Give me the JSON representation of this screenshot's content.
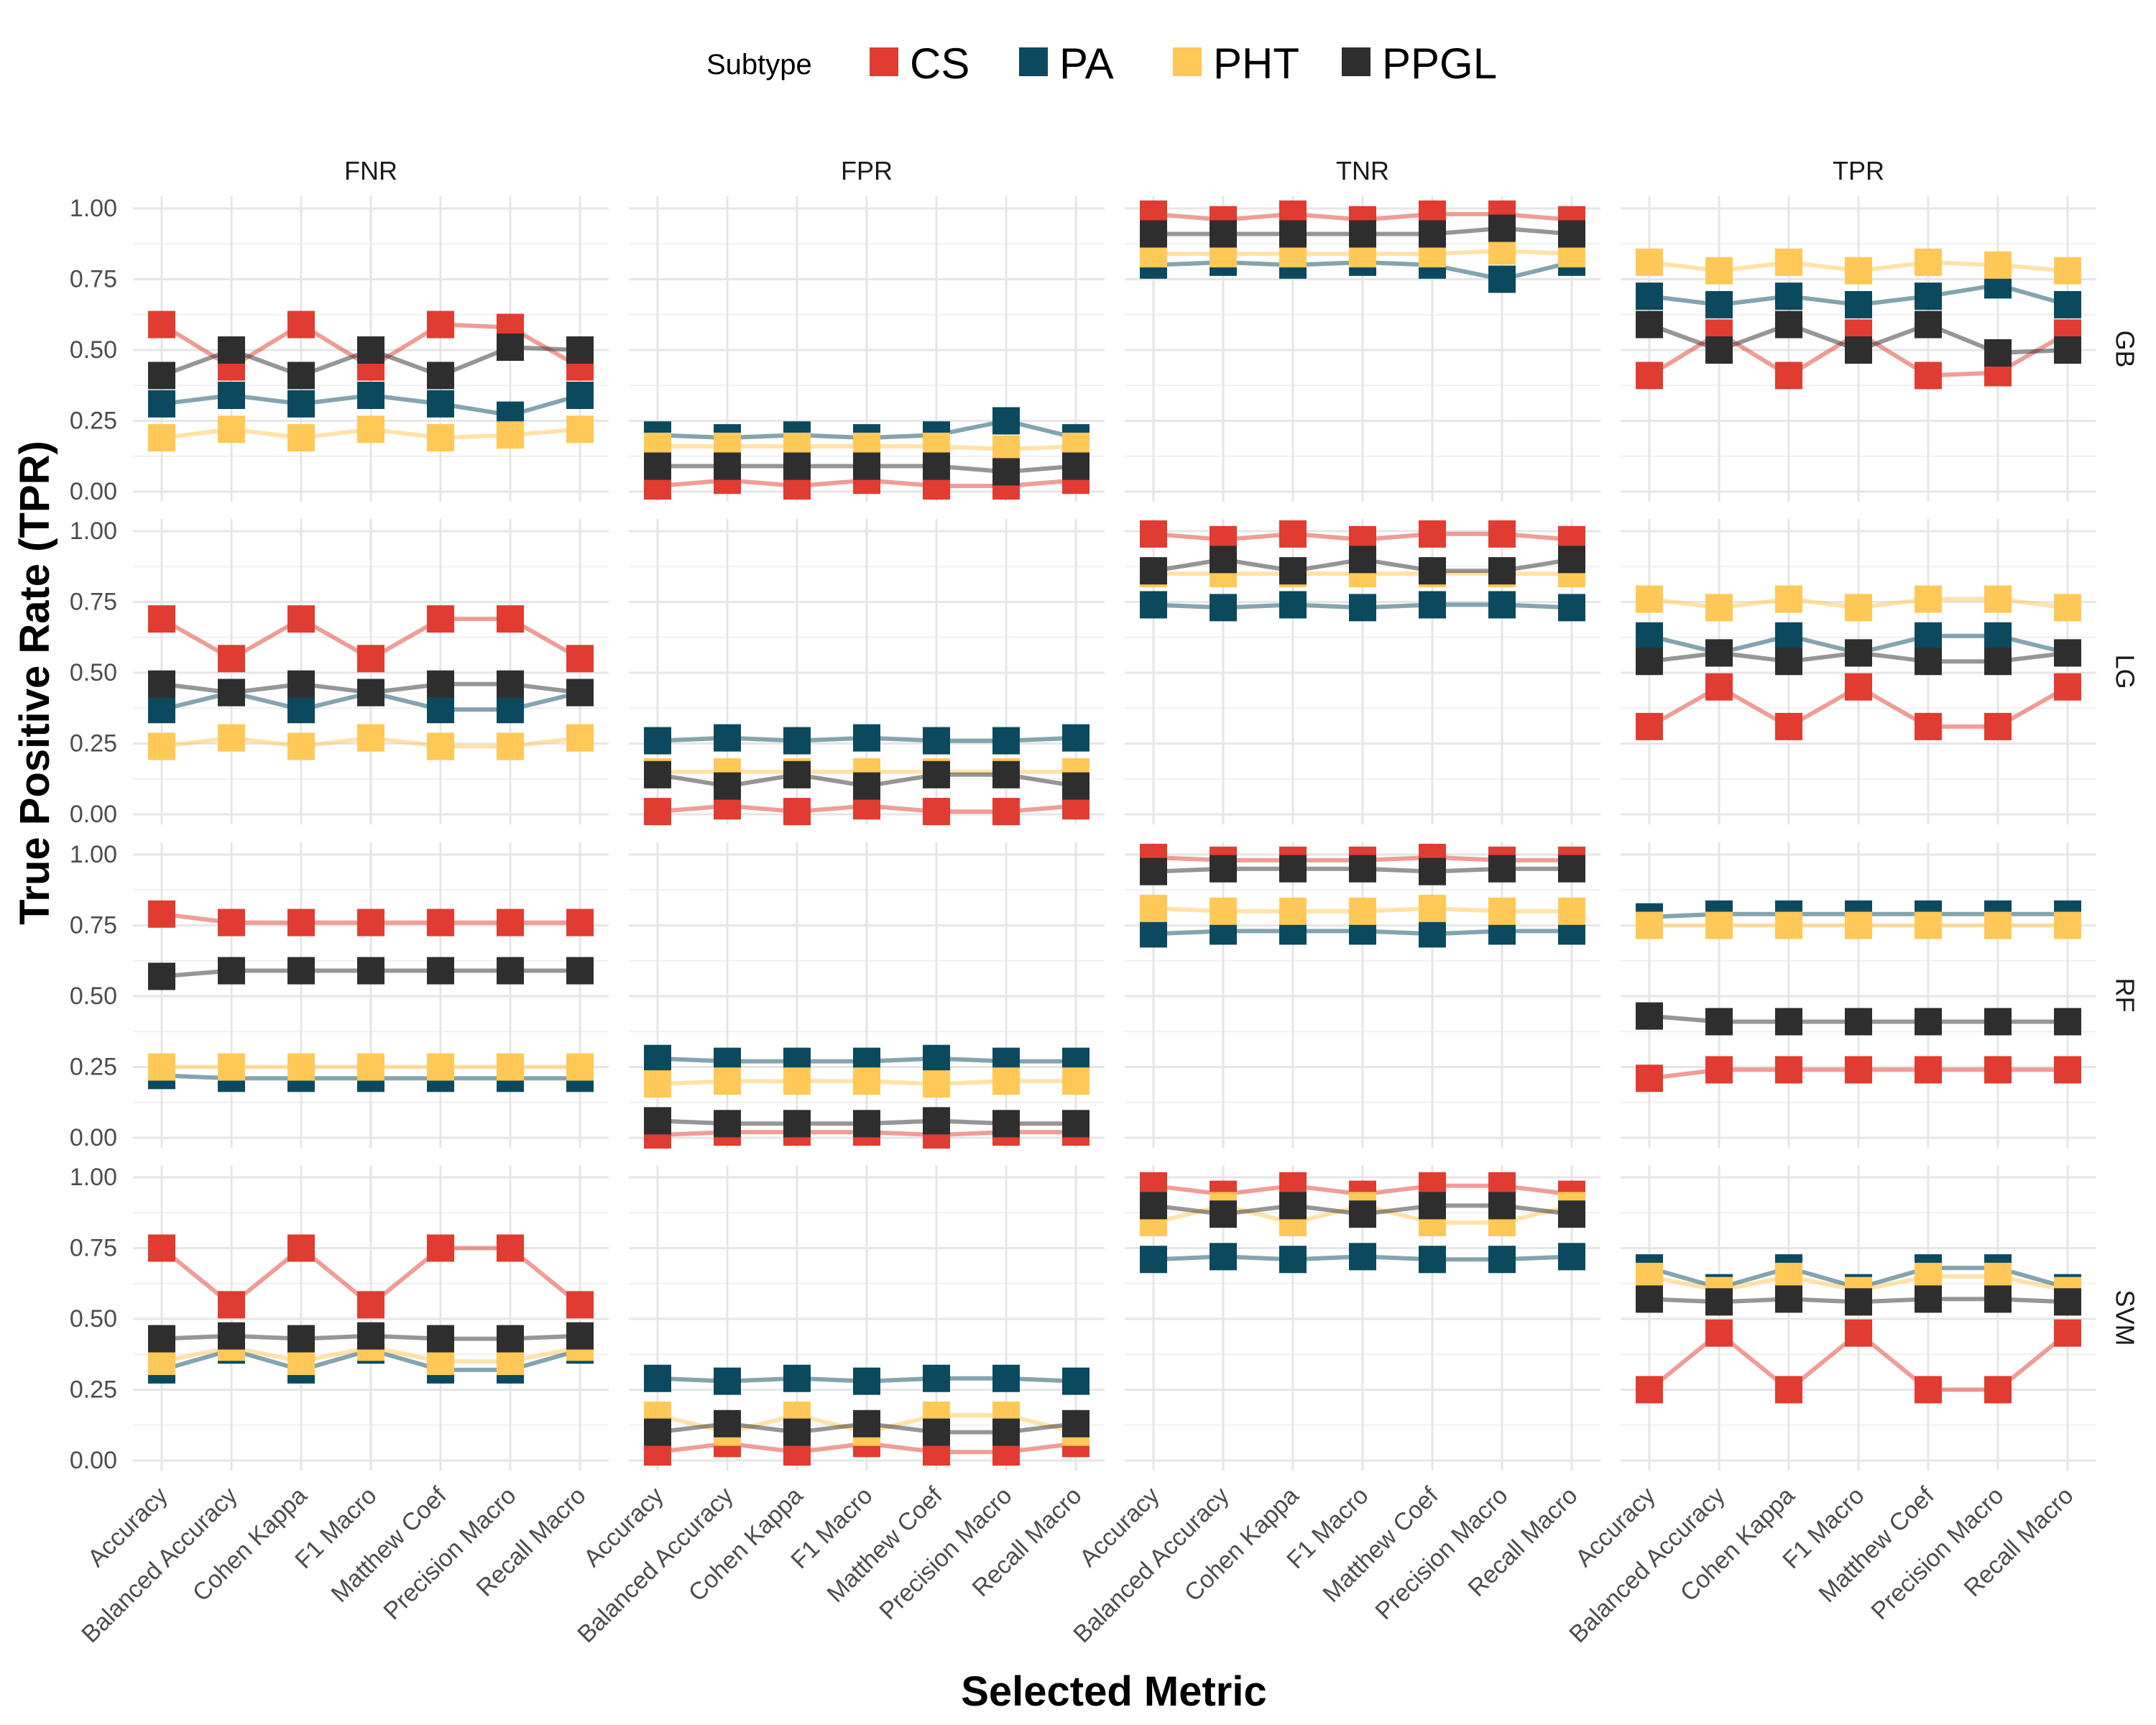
{
  "chart_data": {
    "type": "line",
    "title": "",
    "xlabel": "Selected Metric",
    "ylabel": "True Positive Rate (TPR)",
    "ylim": [
      0,
      1.0
    ],
    "y_ticks": [
      "0.00",
      "0.25",
      "0.50",
      "0.75",
      "1.00"
    ],
    "y_tick_values": [
      0,
      0.25,
      0.5,
      0.75,
      1.0
    ],
    "categories": [
      "Accuracy",
      "Balanced Accuracy",
      "Cohen Kappa",
      "F1 Macro",
      "Matthew Coef",
      "Precision Macro",
      "Recall Macro"
    ],
    "facet_columns": [
      "FNR",
      "FPR",
      "TNR",
      "TPR"
    ],
    "facet_rows": [
      "GB",
      "LG",
      "RF",
      "SVM"
    ],
    "legend": {
      "title": "Subtype",
      "position": "top"
    },
    "grid": true,
    "series_colors": {
      "CS": "#E03C31",
      "PA": "#0B4A5E",
      "PHT": "#FFC857",
      "PPGL": "#2E2E2E"
    },
    "series": [
      {
        "row": "GB",
        "col": "FNR",
        "name": "CS",
        "values": [
          0.59,
          0.44,
          0.59,
          0.44,
          0.59,
          0.58,
          0.44
        ]
      },
      {
        "row": "GB",
        "col": "FNR",
        "name": "PA",
        "values": [
          0.31,
          0.34,
          0.31,
          0.34,
          0.31,
          0.27,
          0.34
        ]
      },
      {
        "row": "GB",
        "col": "FNR",
        "name": "PHT",
        "values": [
          0.19,
          0.22,
          0.19,
          0.22,
          0.19,
          0.2,
          0.22
        ]
      },
      {
        "row": "GB",
        "col": "FNR",
        "name": "PPGL",
        "values": [
          0.41,
          0.5,
          0.41,
          0.5,
          0.41,
          0.51,
          0.5
        ]
      },
      {
        "row": "GB",
        "col": "FPR",
        "name": "CS",
        "values": [
          0.02,
          0.04,
          0.02,
          0.04,
          0.02,
          0.02,
          0.04
        ]
      },
      {
        "row": "GB",
        "col": "FPR",
        "name": "PA",
        "values": [
          0.2,
          0.19,
          0.2,
          0.19,
          0.2,
          0.25,
          0.19
        ]
      },
      {
        "row": "GB",
        "col": "FPR",
        "name": "PHT",
        "values": [
          0.16,
          0.16,
          0.16,
          0.16,
          0.16,
          0.15,
          0.16
        ]
      },
      {
        "row": "GB",
        "col": "FPR",
        "name": "PPGL",
        "values": [
          0.09,
          0.09,
          0.09,
          0.09,
          0.09,
          0.07,
          0.09
        ]
      },
      {
        "row": "GB",
        "col": "TNR",
        "name": "CS",
        "values": [
          0.98,
          0.96,
          0.98,
          0.96,
          0.98,
          0.98,
          0.96
        ]
      },
      {
        "row": "GB",
        "col": "TNR",
        "name": "PA",
        "values": [
          0.8,
          0.81,
          0.8,
          0.81,
          0.8,
          0.75,
          0.81
        ]
      },
      {
        "row": "GB",
        "col": "TNR",
        "name": "PHT",
        "values": [
          0.84,
          0.84,
          0.84,
          0.84,
          0.84,
          0.85,
          0.84
        ]
      },
      {
        "row": "GB",
        "col": "TNR",
        "name": "PPGL",
        "values": [
          0.91,
          0.91,
          0.91,
          0.91,
          0.91,
          0.93,
          0.91
        ]
      },
      {
        "row": "GB",
        "col": "TPR",
        "name": "CS",
        "values": [
          0.41,
          0.56,
          0.41,
          0.56,
          0.41,
          0.42,
          0.56
        ]
      },
      {
        "row": "GB",
        "col": "TPR",
        "name": "PA",
        "values": [
          0.69,
          0.66,
          0.69,
          0.66,
          0.69,
          0.73,
          0.66
        ]
      },
      {
        "row": "GB",
        "col": "TPR",
        "name": "PHT",
        "values": [
          0.81,
          0.78,
          0.81,
          0.78,
          0.81,
          0.8,
          0.78
        ]
      },
      {
        "row": "GB",
        "col": "TPR",
        "name": "PPGL",
        "values": [
          0.59,
          0.5,
          0.59,
          0.5,
          0.59,
          0.49,
          0.5
        ]
      },
      {
        "row": "LG",
        "col": "FNR",
        "name": "CS",
        "values": [
          0.69,
          0.55,
          0.69,
          0.55,
          0.69,
          0.69,
          0.55
        ]
      },
      {
        "row": "LG",
        "col": "FNR",
        "name": "PA",
        "values": [
          0.37,
          0.43,
          0.37,
          0.43,
          0.37,
          0.37,
          0.43
        ]
      },
      {
        "row": "LG",
        "col": "FNR",
        "name": "PHT",
        "values": [
          0.24,
          0.27,
          0.24,
          0.27,
          0.24,
          0.24,
          0.27
        ]
      },
      {
        "row": "LG",
        "col": "FNR",
        "name": "PPGL",
        "values": [
          0.46,
          0.43,
          0.46,
          0.43,
          0.46,
          0.46,
          0.43
        ]
      },
      {
        "row": "LG",
        "col": "FPR",
        "name": "CS",
        "values": [
          0.01,
          0.03,
          0.01,
          0.03,
          0.01,
          0.01,
          0.03
        ]
      },
      {
        "row": "LG",
        "col": "FPR",
        "name": "PA",
        "values": [
          0.26,
          0.27,
          0.26,
          0.27,
          0.26,
          0.26,
          0.27
        ]
      },
      {
        "row": "LG",
        "col": "FPR",
        "name": "PHT",
        "values": [
          0.15,
          0.15,
          0.15,
          0.15,
          0.15,
          0.15,
          0.15
        ]
      },
      {
        "row": "LG",
        "col": "FPR",
        "name": "PPGL",
        "values": [
          0.14,
          0.1,
          0.14,
          0.1,
          0.14,
          0.14,
          0.1
        ]
      },
      {
        "row": "LG",
        "col": "TNR",
        "name": "CS",
        "values": [
          0.99,
          0.97,
          0.99,
          0.97,
          0.99,
          0.99,
          0.97
        ]
      },
      {
        "row": "LG",
        "col": "TNR",
        "name": "PA",
        "values": [
          0.74,
          0.73,
          0.74,
          0.73,
          0.74,
          0.74,
          0.73
        ]
      },
      {
        "row": "LG",
        "col": "TNR",
        "name": "PHT",
        "values": [
          0.85,
          0.85,
          0.85,
          0.85,
          0.85,
          0.85,
          0.85
        ]
      },
      {
        "row": "LG",
        "col": "TNR",
        "name": "PPGL",
        "values": [
          0.86,
          0.9,
          0.86,
          0.9,
          0.86,
          0.86,
          0.9
        ]
      },
      {
        "row": "LG",
        "col": "TPR",
        "name": "CS",
        "values": [
          0.31,
          0.45,
          0.31,
          0.45,
          0.31,
          0.31,
          0.45
        ]
      },
      {
        "row": "LG",
        "col": "TPR",
        "name": "PA",
        "values": [
          0.63,
          0.57,
          0.63,
          0.57,
          0.63,
          0.63,
          0.57
        ]
      },
      {
        "row": "LG",
        "col": "TPR",
        "name": "PHT",
        "values": [
          0.76,
          0.73,
          0.76,
          0.73,
          0.76,
          0.76,
          0.73
        ]
      },
      {
        "row": "LG",
        "col": "TPR",
        "name": "PPGL",
        "values": [
          0.54,
          0.57,
          0.54,
          0.57,
          0.54,
          0.54,
          0.57
        ]
      },
      {
        "row": "RF",
        "col": "FNR",
        "name": "CS",
        "values": [
          0.79,
          0.76,
          0.76,
          0.76,
          0.76,
          0.76,
          0.76
        ]
      },
      {
        "row": "RF",
        "col": "FNR",
        "name": "PA",
        "values": [
          0.22,
          0.21,
          0.21,
          0.21,
          0.21,
          0.21,
          0.21
        ]
      },
      {
        "row": "RF",
        "col": "FNR",
        "name": "PHT",
        "values": [
          0.25,
          0.25,
          0.25,
          0.25,
          0.25,
          0.25,
          0.25
        ]
      },
      {
        "row": "RF",
        "col": "FNR",
        "name": "PPGL",
        "values": [
          0.57,
          0.59,
          0.59,
          0.59,
          0.59,
          0.59,
          0.59
        ]
      },
      {
        "row": "RF",
        "col": "FPR",
        "name": "CS",
        "values": [
          0.01,
          0.02,
          0.02,
          0.02,
          0.01,
          0.02,
          0.02
        ]
      },
      {
        "row": "RF",
        "col": "FPR",
        "name": "PA",
        "values": [
          0.28,
          0.27,
          0.27,
          0.27,
          0.28,
          0.27,
          0.27
        ]
      },
      {
        "row": "RF",
        "col": "FPR",
        "name": "PHT",
        "values": [
          0.19,
          0.2,
          0.2,
          0.2,
          0.19,
          0.2,
          0.2
        ]
      },
      {
        "row": "RF",
        "col": "FPR",
        "name": "PPGL",
        "values": [
          0.06,
          0.05,
          0.05,
          0.05,
          0.06,
          0.05,
          0.05
        ]
      },
      {
        "row": "RF",
        "col": "TNR",
        "name": "CS",
        "values": [
          0.99,
          0.98,
          0.98,
          0.98,
          0.99,
          0.98,
          0.98
        ]
      },
      {
        "row": "RF",
        "col": "TNR",
        "name": "PA",
        "values": [
          0.72,
          0.73,
          0.73,
          0.73,
          0.72,
          0.73,
          0.73
        ]
      },
      {
        "row": "RF",
        "col": "TNR",
        "name": "PHT",
        "values": [
          0.81,
          0.8,
          0.8,
          0.8,
          0.81,
          0.8,
          0.8
        ]
      },
      {
        "row": "RF",
        "col": "TNR",
        "name": "PPGL",
        "values": [
          0.94,
          0.95,
          0.95,
          0.95,
          0.94,
          0.95,
          0.95
        ]
      },
      {
        "row": "RF",
        "col": "TPR",
        "name": "CS",
        "values": [
          0.21,
          0.24,
          0.24,
          0.24,
          0.24,
          0.24,
          0.24
        ]
      },
      {
        "row": "RF",
        "col": "TPR",
        "name": "PA",
        "values": [
          0.78,
          0.79,
          0.79,
          0.79,
          0.79,
          0.79,
          0.79
        ]
      },
      {
        "row": "RF",
        "col": "TPR",
        "name": "PHT",
        "values": [
          0.75,
          0.75,
          0.75,
          0.75,
          0.75,
          0.75,
          0.75
        ]
      },
      {
        "row": "RF",
        "col": "TPR",
        "name": "PPGL",
        "values": [
          0.43,
          0.41,
          0.41,
          0.41,
          0.41,
          0.41,
          0.41
        ]
      },
      {
        "row": "SVM",
        "col": "FNR",
        "name": "CS",
        "values": [
          0.75,
          0.55,
          0.75,
          0.55,
          0.75,
          0.75,
          0.55
        ]
      },
      {
        "row": "SVM",
        "col": "FNR",
        "name": "PA",
        "values": [
          0.32,
          0.39,
          0.32,
          0.39,
          0.32,
          0.32,
          0.39
        ]
      },
      {
        "row": "SVM",
        "col": "FNR",
        "name": "PHT",
        "values": [
          0.35,
          0.4,
          0.35,
          0.4,
          0.35,
          0.35,
          0.4
        ]
      },
      {
        "row": "SVM",
        "col": "FNR",
        "name": "PPGL",
        "values": [
          0.43,
          0.44,
          0.43,
          0.44,
          0.43,
          0.43,
          0.44
        ]
      },
      {
        "row": "SVM",
        "col": "FPR",
        "name": "CS",
        "values": [
          0.03,
          0.06,
          0.03,
          0.06,
          0.03,
          0.03,
          0.06
        ]
      },
      {
        "row": "SVM",
        "col": "FPR",
        "name": "PA",
        "values": [
          0.29,
          0.28,
          0.29,
          0.28,
          0.29,
          0.29,
          0.28
        ]
      },
      {
        "row": "SVM",
        "col": "FPR",
        "name": "PHT",
        "values": [
          0.16,
          0.1,
          0.16,
          0.1,
          0.16,
          0.16,
          0.1
        ]
      },
      {
        "row": "SVM",
        "col": "FPR",
        "name": "PPGL",
        "values": [
          0.1,
          0.13,
          0.1,
          0.13,
          0.1,
          0.1,
          0.13
        ]
      },
      {
        "row": "SVM",
        "col": "TNR",
        "name": "CS",
        "values": [
          0.97,
          0.94,
          0.97,
          0.94,
          0.97,
          0.97,
          0.94
        ]
      },
      {
        "row": "SVM",
        "col": "TNR",
        "name": "PA",
        "values": [
          0.71,
          0.72,
          0.71,
          0.72,
          0.71,
          0.71,
          0.72
        ]
      },
      {
        "row": "SVM",
        "col": "TNR",
        "name": "PHT",
        "values": [
          0.84,
          0.9,
          0.84,
          0.9,
          0.84,
          0.84,
          0.9
        ]
      },
      {
        "row": "SVM",
        "col": "TNR",
        "name": "PPGL",
        "values": [
          0.9,
          0.87,
          0.9,
          0.87,
          0.9,
          0.9,
          0.87
        ]
      },
      {
        "row": "SVM",
        "col": "TPR",
        "name": "CS",
        "values": [
          0.25,
          0.45,
          0.25,
          0.45,
          0.25,
          0.25,
          0.45
        ]
      },
      {
        "row": "SVM",
        "col": "TPR",
        "name": "PA",
        "values": [
          0.68,
          0.61,
          0.68,
          0.61,
          0.68,
          0.68,
          0.61
        ]
      },
      {
        "row": "SVM",
        "col": "TPR",
        "name": "PHT",
        "values": [
          0.65,
          0.6,
          0.65,
          0.6,
          0.65,
          0.65,
          0.6
        ]
      },
      {
        "row": "SVM",
        "col": "TPR",
        "name": "PPGL",
        "values": [
          0.57,
          0.56,
          0.57,
          0.56,
          0.57,
          0.57,
          0.56
        ]
      }
    ]
  }
}
